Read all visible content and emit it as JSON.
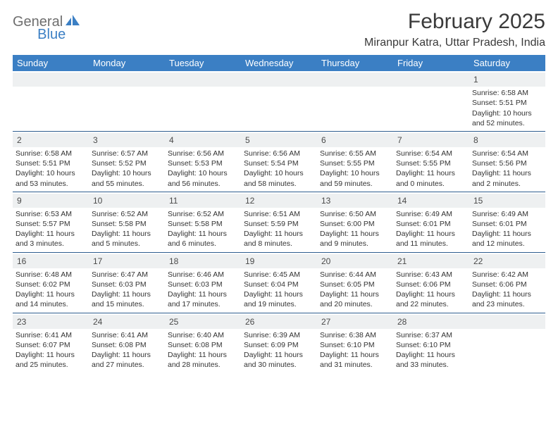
{
  "brand": {
    "part1": "General",
    "part2": "Blue"
  },
  "title": "February 2025",
  "location": "Miranpur Katra, Uttar Pradesh, India",
  "colors": {
    "header_bg": "#3b7fc4",
    "header_text": "#ffffff",
    "daynum_bg": "#eef0f1",
    "week_border": "#2f5e8f",
    "body_text": "#333333",
    "title_text": "#3a3a3a",
    "logo_gray": "#6e6e6e",
    "logo_blue": "#3b7fc4",
    "page_bg": "#ffffff"
  },
  "typography": {
    "title_fontsize": 30,
    "location_fontsize": 16,
    "header_fontsize": 13,
    "daynum_fontsize": 12,
    "cell_fontsize": 10.5,
    "logo_fontsize": 20
  },
  "day_names": [
    "Sunday",
    "Monday",
    "Tuesday",
    "Wednesday",
    "Thursday",
    "Friday",
    "Saturday"
  ],
  "weeks": [
    [
      {
        "n": "",
        "sunrise": "",
        "sunset": "",
        "daylight": ""
      },
      {
        "n": "",
        "sunrise": "",
        "sunset": "",
        "daylight": ""
      },
      {
        "n": "",
        "sunrise": "",
        "sunset": "",
        "daylight": ""
      },
      {
        "n": "",
        "sunrise": "",
        "sunset": "",
        "daylight": ""
      },
      {
        "n": "",
        "sunrise": "",
        "sunset": "",
        "daylight": ""
      },
      {
        "n": "",
        "sunrise": "",
        "sunset": "",
        "daylight": ""
      },
      {
        "n": "1",
        "sunrise": "Sunrise: 6:58 AM",
        "sunset": "Sunset: 5:51 PM",
        "daylight": "Daylight: 10 hours and 52 minutes."
      }
    ],
    [
      {
        "n": "2",
        "sunrise": "Sunrise: 6:58 AM",
        "sunset": "Sunset: 5:51 PM",
        "daylight": "Daylight: 10 hours and 53 minutes."
      },
      {
        "n": "3",
        "sunrise": "Sunrise: 6:57 AM",
        "sunset": "Sunset: 5:52 PM",
        "daylight": "Daylight: 10 hours and 55 minutes."
      },
      {
        "n": "4",
        "sunrise": "Sunrise: 6:56 AM",
        "sunset": "Sunset: 5:53 PM",
        "daylight": "Daylight: 10 hours and 56 minutes."
      },
      {
        "n": "5",
        "sunrise": "Sunrise: 6:56 AM",
        "sunset": "Sunset: 5:54 PM",
        "daylight": "Daylight: 10 hours and 58 minutes."
      },
      {
        "n": "6",
        "sunrise": "Sunrise: 6:55 AM",
        "sunset": "Sunset: 5:55 PM",
        "daylight": "Daylight: 10 hours and 59 minutes."
      },
      {
        "n": "7",
        "sunrise": "Sunrise: 6:54 AM",
        "sunset": "Sunset: 5:55 PM",
        "daylight": "Daylight: 11 hours and 0 minutes."
      },
      {
        "n": "8",
        "sunrise": "Sunrise: 6:54 AM",
        "sunset": "Sunset: 5:56 PM",
        "daylight": "Daylight: 11 hours and 2 minutes."
      }
    ],
    [
      {
        "n": "9",
        "sunrise": "Sunrise: 6:53 AM",
        "sunset": "Sunset: 5:57 PM",
        "daylight": "Daylight: 11 hours and 3 minutes."
      },
      {
        "n": "10",
        "sunrise": "Sunrise: 6:52 AM",
        "sunset": "Sunset: 5:58 PM",
        "daylight": "Daylight: 11 hours and 5 minutes."
      },
      {
        "n": "11",
        "sunrise": "Sunrise: 6:52 AM",
        "sunset": "Sunset: 5:58 PM",
        "daylight": "Daylight: 11 hours and 6 minutes."
      },
      {
        "n": "12",
        "sunrise": "Sunrise: 6:51 AM",
        "sunset": "Sunset: 5:59 PM",
        "daylight": "Daylight: 11 hours and 8 minutes."
      },
      {
        "n": "13",
        "sunrise": "Sunrise: 6:50 AM",
        "sunset": "Sunset: 6:00 PM",
        "daylight": "Daylight: 11 hours and 9 minutes."
      },
      {
        "n": "14",
        "sunrise": "Sunrise: 6:49 AM",
        "sunset": "Sunset: 6:01 PM",
        "daylight": "Daylight: 11 hours and 11 minutes."
      },
      {
        "n": "15",
        "sunrise": "Sunrise: 6:49 AM",
        "sunset": "Sunset: 6:01 PM",
        "daylight": "Daylight: 11 hours and 12 minutes."
      }
    ],
    [
      {
        "n": "16",
        "sunrise": "Sunrise: 6:48 AM",
        "sunset": "Sunset: 6:02 PM",
        "daylight": "Daylight: 11 hours and 14 minutes."
      },
      {
        "n": "17",
        "sunrise": "Sunrise: 6:47 AM",
        "sunset": "Sunset: 6:03 PM",
        "daylight": "Daylight: 11 hours and 15 minutes."
      },
      {
        "n": "18",
        "sunrise": "Sunrise: 6:46 AM",
        "sunset": "Sunset: 6:03 PM",
        "daylight": "Daylight: 11 hours and 17 minutes."
      },
      {
        "n": "19",
        "sunrise": "Sunrise: 6:45 AM",
        "sunset": "Sunset: 6:04 PM",
        "daylight": "Daylight: 11 hours and 19 minutes."
      },
      {
        "n": "20",
        "sunrise": "Sunrise: 6:44 AM",
        "sunset": "Sunset: 6:05 PM",
        "daylight": "Daylight: 11 hours and 20 minutes."
      },
      {
        "n": "21",
        "sunrise": "Sunrise: 6:43 AM",
        "sunset": "Sunset: 6:06 PM",
        "daylight": "Daylight: 11 hours and 22 minutes."
      },
      {
        "n": "22",
        "sunrise": "Sunrise: 6:42 AM",
        "sunset": "Sunset: 6:06 PM",
        "daylight": "Daylight: 11 hours and 23 minutes."
      }
    ],
    [
      {
        "n": "23",
        "sunrise": "Sunrise: 6:41 AM",
        "sunset": "Sunset: 6:07 PM",
        "daylight": "Daylight: 11 hours and 25 minutes."
      },
      {
        "n": "24",
        "sunrise": "Sunrise: 6:41 AM",
        "sunset": "Sunset: 6:08 PM",
        "daylight": "Daylight: 11 hours and 27 minutes."
      },
      {
        "n": "25",
        "sunrise": "Sunrise: 6:40 AM",
        "sunset": "Sunset: 6:08 PM",
        "daylight": "Daylight: 11 hours and 28 minutes."
      },
      {
        "n": "26",
        "sunrise": "Sunrise: 6:39 AM",
        "sunset": "Sunset: 6:09 PM",
        "daylight": "Daylight: 11 hours and 30 minutes."
      },
      {
        "n": "27",
        "sunrise": "Sunrise: 6:38 AM",
        "sunset": "Sunset: 6:10 PM",
        "daylight": "Daylight: 11 hours and 31 minutes."
      },
      {
        "n": "28",
        "sunrise": "Sunrise: 6:37 AM",
        "sunset": "Sunset: 6:10 PM",
        "daylight": "Daylight: 11 hours and 33 minutes."
      },
      {
        "n": "",
        "sunrise": "",
        "sunset": "",
        "daylight": ""
      }
    ]
  ]
}
